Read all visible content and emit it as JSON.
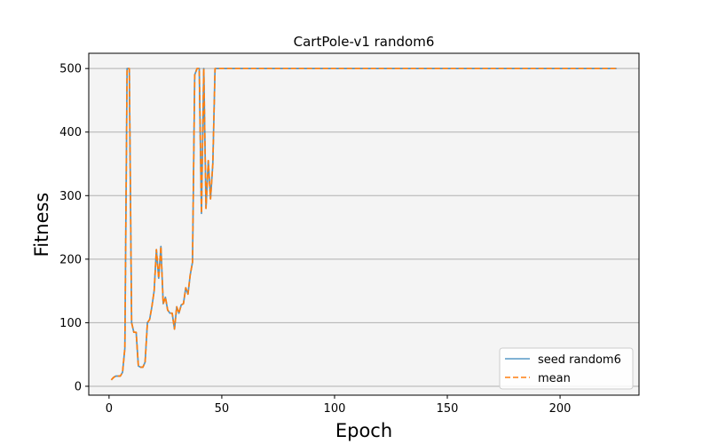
{
  "chart_data": {
    "type": "line",
    "title": "CartPole-v1 random6",
    "xlabel": "Epoch",
    "ylabel": "Fitness",
    "xlim": [
      -9,
      235
    ],
    "ylim": [
      -14,
      524
    ],
    "xticks": [
      0,
      50,
      100,
      150,
      200
    ],
    "yticks": [
      0,
      100,
      200,
      300,
      400,
      500
    ],
    "grid": "horizontal",
    "legend_position": "lower-right",
    "series": [
      {
        "name": "seed random6",
        "color": "#1f77b4",
        "style": "solid",
        "x": [
          1,
          2,
          3,
          4,
          5,
          6,
          7,
          8,
          9,
          10,
          11,
          12,
          13,
          14,
          15,
          16,
          17,
          18,
          19,
          20,
          21,
          22,
          23,
          24,
          25,
          26,
          27,
          28,
          29,
          30,
          31,
          32,
          33,
          34,
          35,
          36,
          37,
          38,
          39,
          40,
          41,
          42,
          43,
          44,
          45,
          46,
          47,
          225
        ],
        "y": [
          10,
          14,
          16,
          16,
          16,
          22,
          60,
          500,
          500,
          100,
          85,
          85,
          32,
          30,
          30,
          38,
          100,
          105,
          125,
          150,
          215,
          170,
          220,
          130,
          140,
          120,
          115,
          115,
          90,
          125,
          115,
          128,
          130,
          155,
          145,
          175,
          195,
          490,
          500,
          500,
          272,
          500,
          280,
          355,
          295,
          350,
          500,
          500
        ]
      },
      {
        "name": "mean",
        "color": "#ff7f0e",
        "style": "dashed",
        "x": [
          1,
          2,
          3,
          4,
          5,
          6,
          7,
          8,
          9,
          10,
          11,
          12,
          13,
          14,
          15,
          16,
          17,
          18,
          19,
          20,
          21,
          22,
          23,
          24,
          25,
          26,
          27,
          28,
          29,
          30,
          31,
          32,
          33,
          34,
          35,
          36,
          37,
          38,
          39,
          40,
          41,
          42,
          43,
          44,
          45,
          46,
          47,
          225
        ],
        "y": [
          10,
          14,
          16,
          16,
          16,
          22,
          60,
          500,
          500,
          100,
          85,
          85,
          32,
          30,
          30,
          38,
          100,
          105,
          125,
          150,
          215,
          170,
          220,
          130,
          140,
          120,
          115,
          115,
          90,
          125,
          115,
          128,
          130,
          155,
          145,
          175,
          195,
          490,
          500,
          500,
          272,
          500,
          280,
          355,
          295,
          350,
          500,
          500
        ]
      }
    ]
  }
}
